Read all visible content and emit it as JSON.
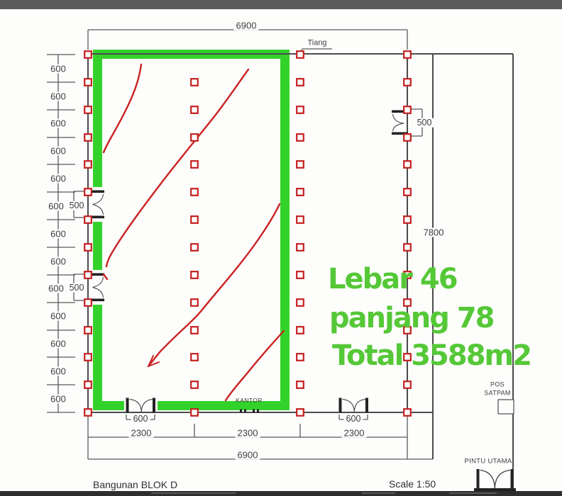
{
  "annotation": {
    "lines": [
      "Lebar 46",
      "panjang 78",
      "Total 3588m2"
    ],
    "color": "#55c837"
  },
  "dimensions": {
    "top_width": "6900",
    "bottom_spans": [
      "2300",
      "2300",
      "2300"
    ],
    "bottom_total": "6900",
    "side_total": "7800",
    "left_ticks": [
      "600",
      "600",
      "600",
      "600",
      "600",
      "600",
      "600",
      "600",
      "600",
      "600",
      "600",
      "600",
      "600"
    ],
    "side_door_widths": [
      "500",
      "500",
      "500"
    ],
    "bottom_door_widths": [
      "600",
      "600"
    ]
  },
  "labels": {
    "tiang": "Tiang",
    "kantor": "KANTOR",
    "pos_satpam": [
      "POS",
      "SATPAM"
    ],
    "pintu_utama": "PINTU UTAMA"
  },
  "footer": {
    "title": "Bangunan BLOK D",
    "scale": "Scale 1:50"
  },
  "colors": {
    "highlight_green": "#33d22b",
    "column_red": "#c42020",
    "line_gray": "#4b4b4b"
  }
}
